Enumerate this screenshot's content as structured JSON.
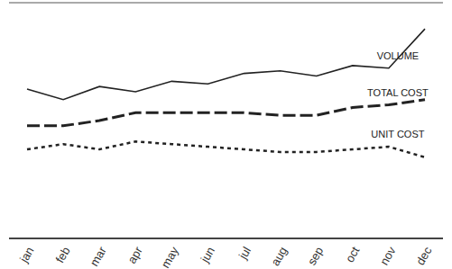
{
  "chart_data": {
    "type": "line",
    "categories": [
      "jan",
      "feb",
      "mar",
      "apr",
      "may",
      "jun",
      "jul",
      "aug",
      "sep",
      "oct",
      "nov",
      "dec"
    ],
    "series": [
      {
        "name": "VOLUME",
        "color": "#222222",
        "line_style": "solid",
        "values": [
          5.7,
          5.3,
          5.8,
          5.6,
          6.0,
          5.9,
          6.3,
          6.4,
          6.2,
          6.6,
          6.5,
          8.0
        ]
      },
      {
        "name": "TOTAL COST",
        "color": "#222222",
        "line_style": "dashed",
        "values": [
          4.3,
          4.3,
          4.5,
          4.8,
          4.8,
          4.8,
          4.8,
          4.7,
          4.7,
          5.0,
          5.1,
          5.3
        ]
      },
      {
        "name": "UNIT COST",
        "color": "#222222",
        "line_style": "dotted",
        "values": [
          3.4,
          3.6,
          3.4,
          3.7,
          3.6,
          3.5,
          3.4,
          3.3,
          3.3,
          3.4,
          3.5,
          3.1
        ]
      }
    ],
    "ylim": [
      0,
      9
    ],
    "yticks": [
      0,
      1,
      2,
      3,
      4,
      5,
      6,
      7,
      8,
      9
    ],
    "grid": true,
    "tick_labels": "x"
  }
}
